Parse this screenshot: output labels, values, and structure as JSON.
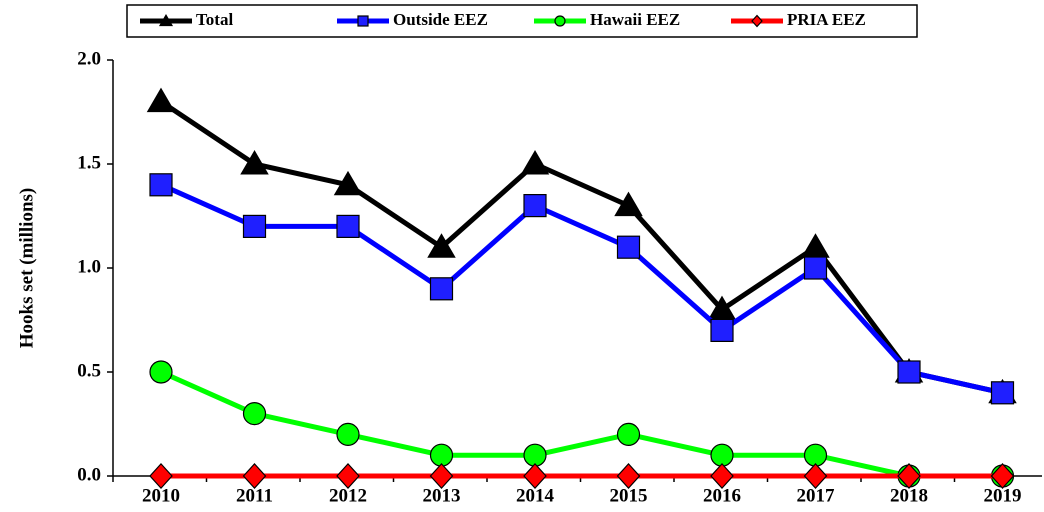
{
  "chart_data": {
    "type": "line",
    "y_label": "Hooks set (millions)",
    "categories": [
      "2010",
      "2011",
      "2012",
      "2013",
      "2014",
      "2015",
      "2016",
      "2017",
      "2018",
      "2019"
    ],
    "series": [
      {
        "name": "Total",
        "color": "#000000",
        "marker": "triangle",
        "marker_fill": "#000000",
        "values": [
          1.8,
          1.5,
          1.4,
          1.1,
          1.5,
          1.3,
          0.8,
          1.1,
          0.5,
          0.4
        ]
      },
      {
        "name": "Outside EEZ",
        "color": "#0000ff",
        "marker": "square",
        "marker_fill": "#1f1fff",
        "values": [
          1.4,
          1.2,
          1.2,
          0.9,
          1.3,
          1.1,
          0.7,
          1.0,
          0.5,
          0.4
        ]
      },
      {
        "name": "Hawaii EEZ",
        "color": "#00ff00",
        "marker": "circle",
        "marker_fill": "#00ff00",
        "values": [
          0.5,
          0.3,
          0.2,
          0.1,
          0.1,
          0.2,
          0.1,
          0.1,
          0.0,
          0.0
        ]
      },
      {
        "name": "PRIA EEZ",
        "color": "#ff0000",
        "marker": "diamond",
        "marker_fill": "#ff0000",
        "values": [
          0,
          0,
          0,
          0,
          0,
          0,
          0,
          0,
          0,
          0
        ]
      }
    ],
    "ylim": [
      0,
      2
    ],
    "yticks": [
      {
        "value": 0,
        "label": "0.0"
      },
      0.5,
      {
        "value": 1,
        "label": "1.0"
      },
      1.5,
      {
        "value": 2,
        "label": "2.0"
      }
    ],
    "grid": false,
    "legend": "top"
  }
}
